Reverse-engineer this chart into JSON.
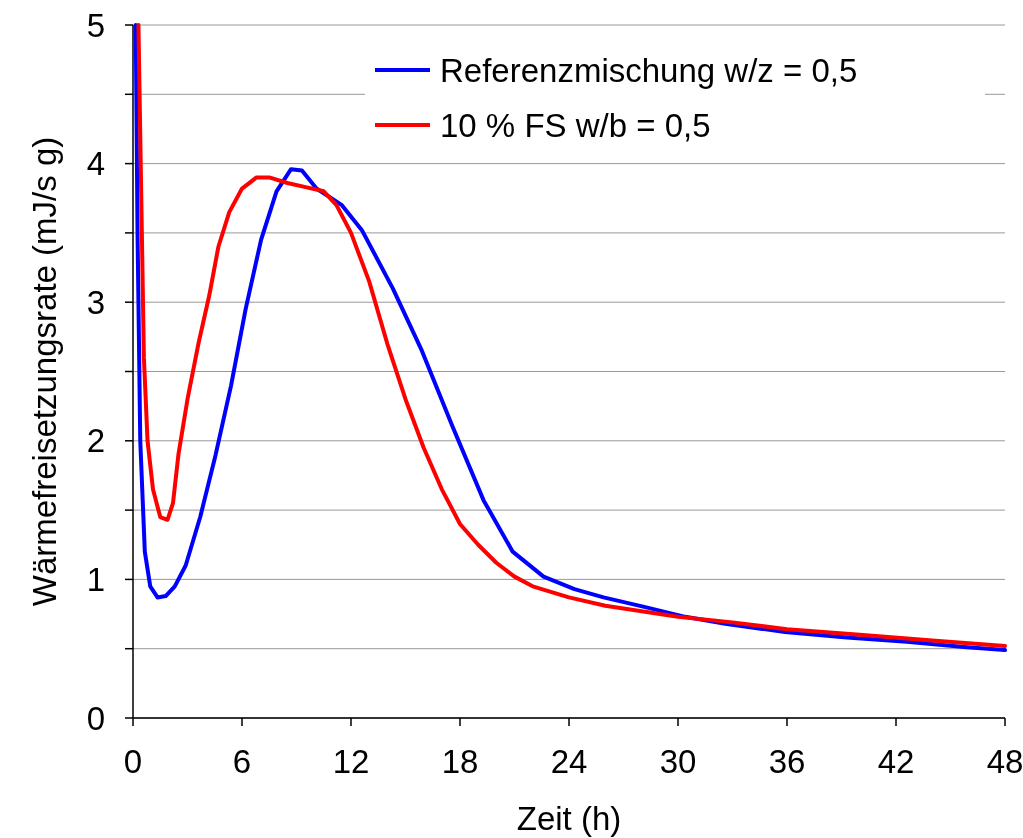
{
  "chart_data": {
    "type": "line",
    "xlabel": "Zeit (h)",
    "ylabel": "Wärmefreisetzungsrate (mJ/s g)",
    "xlim": [
      0,
      48
    ],
    "xticks": [
      0,
      6,
      12,
      18,
      24,
      30,
      36,
      42,
      48
    ],
    "ylim": [
      0,
      5
    ],
    "yticks": [
      0,
      {
        "value": 0.5,
        "label": null
      },
      1,
      {
        "value": 1.5,
        "label": null
      },
      2,
      {
        "value": 2.5,
        "label": null
      },
      3,
      {
        "value": 3.5,
        "label": null
      },
      4,
      {
        "value": 4.5,
        "label": null
      },
      5
    ],
    "grid": "y",
    "legend": "top right",
    "marker": "none",
    "line_style": "solid",
    "series": [
      {
        "name": "Referenzmischung w/z = 0,5",
        "color": "#0000ff",
        "x": [
          0.15,
          0.25,
          0.4,
          0.65,
          0.95,
          1.35,
          1.8,
          2.3,
          2.9,
          3.7,
          4.55,
          5.4,
          6.2,
          7.05,
          7.9,
          8.7,
          9.3,
          10.1,
          11.5,
          12.6,
          14.3,
          15.9,
          17.6,
          19.3,
          20.9,
          22.6,
          24.3,
          25.9,
          28.2,
          30.4,
          32.6,
          35.9,
          39.3,
          42.6,
          45.9,
          48
        ],
        "values": [
          5.0,
          3.5,
          2.0,
          1.2,
          0.95,
          0.87,
          0.88,
          0.95,
          1.1,
          1.45,
          1.9,
          2.4,
          2.95,
          3.45,
          3.8,
          3.96,
          3.95,
          3.82,
          3.7,
          3.52,
          3.1,
          2.65,
          2.1,
          1.57,
          1.2,
          1.02,
          0.93,
          0.87,
          0.8,
          0.73,
          0.68,
          0.62,
          0.58,
          0.55,
          0.51,
          0.49
        ]
      },
      {
        "name": "10 % FS w/b = 0,5",
        "color": "#ff0000",
        "x": [
          0.3,
          0.45,
          0.6,
          0.8,
          1.1,
          1.5,
          1.9,
          2.2,
          2.5,
          3.0,
          3.6,
          4.2,
          4.7,
          5.3,
          6.0,
          6.8,
          7.5,
          8.5,
          9.5,
          10.5,
          11.2,
          12,
          13,
          14,
          15,
          16,
          17,
          18,
          19,
          20,
          21,
          22,
          24,
          26,
          28,
          30,
          33,
          36,
          40,
          44,
          48
        ],
        "values": [
          5.0,
          3.8,
          2.6,
          2.0,
          1.65,
          1.45,
          1.43,
          1.55,
          1.9,
          2.3,
          2.7,
          3.05,
          3.4,
          3.65,
          3.82,
          3.9,
          3.9,
          3.86,
          3.83,
          3.8,
          3.7,
          3.5,
          3.15,
          2.7,
          2.3,
          1.95,
          1.65,
          1.4,
          1.25,
          1.12,
          1.02,
          0.95,
          0.87,
          0.81,
          0.77,
          0.73,
          0.69,
          0.64,
          0.6,
          0.56,
          0.52
        ]
      }
    ]
  }
}
